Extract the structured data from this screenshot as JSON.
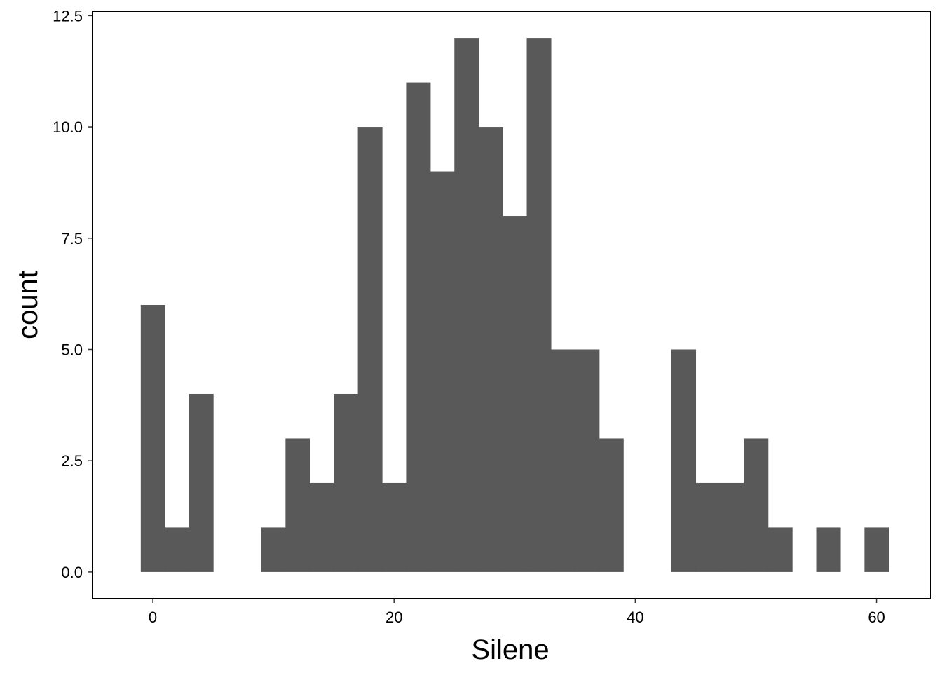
{
  "chart_data": {
    "type": "bar",
    "subtype": "histogram",
    "xlabel": "Silene",
    "ylabel": "count",
    "bin_width": 2,
    "bins": [
      {
        "x0": -1,
        "x1": 1,
        "count": 6
      },
      {
        "x0": 1,
        "x1": 3,
        "count": 1
      },
      {
        "x0": 3,
        "x1": 5,
        "count": 4
      },
      {
        "x0": 5,
        "x1": 7,
        "count": 0
      },
      {
        "x0": 7,
        "x1": 9,
        "count": 0
      },
      {
        "x0": 9,
        "x1": 11,
        "count": 1
      },
      {
        "x0": 11,
        "x1": 13,
        "count": 3
      },
      {
        "x0": 13,
        "x1": 15,
        "count": 2
      },
      {
        "x0": 15,
        "x1": 17,
        "count": 4
      },
      {
        "x0": 17,
        "x1": 19,
        "count": 10
      },
      {
        "x0": 19,
        "x1": 21,
        "count": 2
      },
      {
        "x0": 21,
        "x1": 23,
        "count": 11
      },
      {
        "x0": 23,
        "x1": 25,
        "count": 9
      },
      {
        "x0": 25,
        "x1": 27,
        "count": 12
      },
      {
        "x0": 27,
        "x1": 29,
        "count": 10
      },
      {
        "x0": 29,
        "x1": 31,
        "count": 8
      },
      {
        "x0": 31,
        "x1": 33,
        "count": 12
      },
      {
        "x0": 33,
        "x1": 35,
        "count": 5
      },
      {
        "x0": 35,
        "x1": 37,
        "count": 5
      },
      {
        "x0": 37,
        "x1": 39,
        "count": 3
      },
      {
        "x0": 39,
        "x1": 41,
        "count": 0
      },
      {
        "x0": 41,
        "x1": 43,
        "count": 0
      },
      {
        "x0": 43,
        "x1": 45,
        "count": 5
      },
      {
        "x0": 45,
        "x1": 47,
        "count": 2
      },
      {
        "x0": 47,
        "x1": 49,
        "count": 2
      },
      {
        "x0": 49,
        "x1": 51,
        "count": 3
      },
      {
        "x0": 51,
        "x1": 53,
        "count": 1
      },
      {
        "x0": 53,
        "x1": 55,
        "count": 0
      },
      {
        "x0": 55,
        "x1": 57,
        "count": 1
      },
      {
        "x0": 57,
        "x1": 59,
        "count": 0
      },
      {
        "x0": 59,
        "x1": 61,
        "count": 1
      }
    ],
    "xlim": [
      -5,
      64.5
    ],
    "ylim": [
      -0.6,
      12.6
    ],
    "x_ticks": [
      0,
      20,
      40,
      60
    ],
    "x_tick_labels": [
      "0",
      "20",
      "40",
      "60"
    ],
    "y_ticks": [
      0,
      2.5,
      5,
      7.5,
      10,
      12.5
    ],
    "y_tick_labels": [
      "0.0",
      "2.5",
      "5.0",
      "7.5",
      "10.0",
      "12.5"
    ],
    "grid": false,
    "legend": "none",
    "colors": {
      "bar_fill": "#595959",
      "panel_border": "#000000",
      "background": "#ffffff"
    }
  }
}
